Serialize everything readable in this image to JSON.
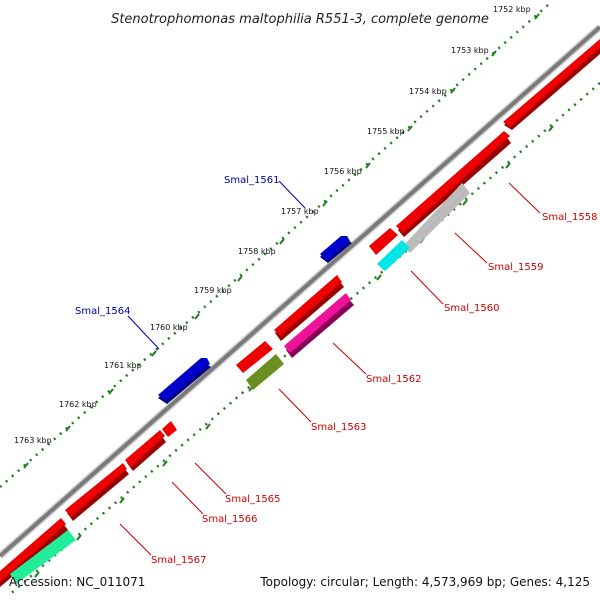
{
  "title": "Stenotrophomonas maltophilia R551-3, complete genome",
  "colors": {
    "backbone": "#7a7a7a",
    "scale": "#1e7d1e",
    "red_gene": "#ee0000",
    "blue_gene": "#0000cc",
    "cyan_gene": "#00e6e6",
    "gray_gene": "#bbbbbb",
    "magenta_gene": "#ee1199",
    "olive_gene": "#6b8e23",
    "teal_gene": "#22ee99",
    "blue_label": "#0000aa",
    "red_label": "#cc0000"
  },
  "scale_labels": [
    "1752 kbp",
    "1753 kbp",
    "1754 kbp",
    "1755 kbp",
    "1756 kbp",
    "1757 kbp",
    "1758 kbp",
    "1759 kbp",
    "1760 kbp",
    "1761 kbp",
    "1762 kbp",
    "1763 kbp"
  ],
  "gene_labels": {
    "smal_1558": "Smal_1558",
    "smal_1559": "Smal_1559",
    "smal_1560": "Smal_1560",
    "smal_1561": "Smal_1561",
    "smal_1562": "Smal_1562",
    "smal_1563": "Smal_1563",
    "smal_1564": "Smal_1564",
    "smal_1565": "Smal_1565",
    "smal_1566": "Smal_1566",
    "smal_1567": "Smal_1567"
  },
  "footer": {
    "accession": "Accession: NC_011071",
    "summary": "Topology: circular; Length: 4,573,969 bp; Genes: 4,125"
  }
}
